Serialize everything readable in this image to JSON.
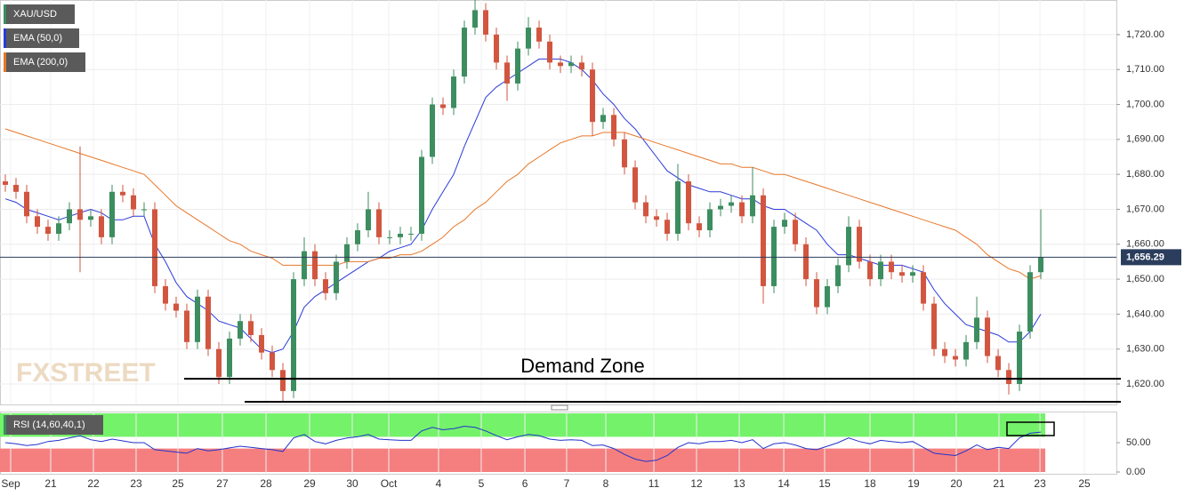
{
  "chart_data": {
    "type": "candlestick",
    "candles": {
      "name": "XAU/USD",
      "up_color": "#3c8d5f",
      "down_color": "#d2553f",
      "legend_color": "#3c8d5f",
      "open": [
        1678,
        1677,
        1675,
        1668,
        1665,
        1663,
        1666,
        1670,
        1667,
        1668,
        1662,
        1675,
        1674,
        1670,
        1670,
        1648,
        1643,
        1641,
        1632,
        1645,
        1630,
        1622,
        1633,
        1638,
        1634,
        1629,
        1624,
        1618,
        1650,
        1658,
        1650,
        1646,
        1655,
        1660,
        1664,
        1670,
        1662,
        1662,
        1663,
        1663,
        1685,
        1700,
        1699,
        1708,
        1722,
        1727,
        1720,
        1712,
        1706,
        1716,
        1722,
        1718,
        1712,
        1711,
        1712,
        1710,
        1695,
        1697,
        1690,
        1682,
        1672,
        1668,
        1667,
        1663,
        1678,
        1666,
        1664,
        1670,
        1671,
        1672,
        1668,
        1674,
        1648,
        1665,
        1667,
        1660,
        1650,
        1642,
        1648,
        1654,
        1665,
        1655,
        1650,
        1655,
        1652,
        1651,
        1652,
        1643,
        1630,
        1628,
        1627,
        1632,
        1639,
        1628,
        1624,
        1620,
        1635,
        1652
      ],
      "high": [
        1680,
        1679,
        1677,
        1670,
        1667,
        1668,
        1672,
        1688,
        1670,
        1670,
        1677,
        1677,
        1676,
        1672,
        1672,
        1650,
        1645,
        1643,
        1647,
        1647,
        1632,
        1635,
        1640,
        1640,
        1636,
        1631,
        1626,
        1652,
        1662,
        1660,
        1652,
        1657,
        1662,
        1666,
        1675,
        1672,
        1664,
        1665,
        1665,
        1687,
        1702,
        1702,
        1710,
        1724,
        1730,
        1729,
        1722,
        1714,
        1718,
        1725,
        1724,
        1720,
        1714,
        1714,
        1714,
        1712,
        1699,
        1699,
        1692,
        1684,
        1674,
        1670,
        1669,
        1683,
        1680,
        1668,
        1672,
        1673,
        1674,
        1674,
        1682,
        1676,
        1667,
        1669,
        1669,
        1662,
        1652,
        1650,
        1656,
        1668,
        1667,
        1657,
        1657,
        1657,
        1654,
        1654,
        1654,
        1645,
        1632,
        1630,
        1634,
        1645,
        1641,
        1630,
        1626,
        1637,
        1654,
        1670
      ],
      "low": [
        1675,
        1673,
        1666,
        1663,
        1661,
        1661,
        1664,
        1652,
        1665,
        1660,
        1660,
        1672,
        1668,
        1668,
        1646,
        1641,
        1639,
        1630,
        1630,
        1628,
        1620,
        1620,
        1631,
        1632,
        1627,
        1622,
        1615,
        1616,
        1648,
        1648,
        1644,
        1644,
        1653,
        1658,
        1662,
        1660,
        1660,
        1660,
        1661,
        1661,
        1683,
        1697,
        1697,
        1706,
        1720,
        1718,
        1710,
        1701,
        1704,
        1714,
        1716,
        1710,
        1709,
        1709,
        1708,
        1691,
        1693,
        1688,
        1680,
        1670,
        1666,
        1665,
        1661,
        1661,
        1664,
        1662,
        1662,
        1668,
        1669,
        1666,
        1666,
        1643,
        1646,
        1663,
        1658,
        1648,
        1640,
        1640,
        1646,
        1652,
        1653,
        1648,
        1648,
        1650,
        1649,
        1649,
        1641,
        1628,
        1626,
        1625,
        1625,
        1630,
        1626,
        1622,
        1617,
        1618,
        1633,
        1650
      ],
      "close": [
        1677,
        1675,
        1668,
        1665,
        1663,
        1666,
        1670,
        1667,
        1668,
        1662,
        1675,
        1674,
        1670,
        1670,
        1648,
        1643,
        1641,
        1632,
        1645,
        1630,
        1622,
        1633,
        1638,
        1634,
        1629,
        1624,
        1618,
        1650,
        1658,
        1650,
        1646,
        1655,
        1660,
        1664,
        1670,
        1662,
        1662,
        1663,
        1663,
        1685,
        1700,
        1699,
        1708,
        1722,
        1727,
        1720,
        1712,
        1706,
        1716,
        1722,
        1718,
        1712,
        1711,
        1712,
        1710,
        1695,
        1697,
        1690,
        1682,
        1672,
        1668,
        1667,
        1663,
        1678,
        1666,
        1664,
        1670,
        1671,
        1672,
        1668,
        1674,
        1648,
        1665,
        1667,
        1660,
        1650,
        1642,
        1648,
        1654,
        1665,
        1655,
        1650,
        1655,
        1652,
        1651,
        1652,
        1643,
        1630,
        1628,
        1627,
        1632,
        1639,
        1628,
        1624,
        1620,
        1635,
        1652,
        1656.29
      ]
    },
    "last_price_label": "1,656.29",
    "overlays": [
      {
        "name": "EMA (50,0)",
        "color": "#2a3ad8",
        "values": [
          1673,
          1672,
          1670,
          1669,
          1668,
          1667,
          1668,
          1669,
          1670,
          1669,
          1667,
          1667,
          1668,
          1668,
          1660,
          1655,
          1649,
          1645,
          1643,
          1641,
          1638,
          1637,
          1636,
          1633,
          1630,
          1629,
          1630,
          1635,
          1642,
          1645,
          1647,
          1649,
          1651,
          1653,
          1655,
          1656,
          1658,
          1659,
          1660,
          1664,
          1670,
          1675,
          1680,
          1688,
          1695,
          1702,
          1705,
          1707,
          1709,
          1711,
          1713,
          1713,
          1713,
          1712,
          1710,
          1707,
          1703,
          1700,
          1696,
          1693,
          1689,
          1685,
          1681,
          1679,
          1677,
          1676,
          1675,
          1675,
          1674,
          1673,
          1673,
          1671,
          1670,
          1670,
          1668,
          1666,
          1664,
          1660,
          1657,
          1657,
          1656,
          1655,
          1654,
          1654,
          1654,
          1653,
          1652,
          1647,
          1643,
          1640,
          1637,
          1636,
          1635,
          1634,
          1632,
          1632,
          1635,
          1640
        ]
      },
      {
        "name": "EMA (200,0)",
        "color": "#e8772a",
        "values": [
          1693,
          1692,
          1691,
          1690,
          1689,
          1688,
          1687,
          1686,
          1685,
          1684,
          1683,
          1682,
          1681,
          1680,
          1677,
          1674,
          1671,
          1669,
          1667,
          1665,
          1663,
          1661,
          1660,
          1658,
          1657,
          1656,
          1654,
          1654,
          1654,
          1654,
          1654,
          1654,
          1655,
          1655,
          1655,
          1656,
          1656,
          1657,
          1657,
          1658,
          1660,
          1662,
          1665,
          1667,
          1670,
          1672,
          1675,
          1678,
          1680,
          1683,
          1685,
          1687,
          1689,
          1690,
          1691,
          1691,
          1692,
          1692,
          1692,
          1691,
          1690,
          1689,
          1688,
          1687,
          1686,
          1685,
          1684,
          1683,
          1683,
          1682,
          1682,
          1681,
          1680,
          1680,
          1679,
          1678,
          1677,
          1676,
          1675,
          1674,
          1673,
          1672,
          1671,
          1670,
          1669,
          1668,
          1667,
          1666,
          1665,
          1664,
          1662,
          1660,
          1657,
          1655,
          1653,
          1652,
          1650,
          1651
        ]
      }
    ],
    "xlim": [
      -0.5,
      104.08
    ],
    "xticks": [
      {
        "value": 0.5,
        "label": "Sep"
      },
      {
        "value": 4.25,
        "label": "21"
      },
      {
        "value": 8.25,
        "label": "22"
      },
      {
        "value": 12.25,
        "label": "23"
      },
      {
        "value": 16.17,
        "label": "25"
      },
      {
        "value": 20.33,
        "label": "27"
      },
      {
        "value": 24.42,
        "label": "28"
      },
      {
        "value": 28.5,
        "label": "29"
      },
      {
        "value": 32.5,
        "label": "30"
      },
      {
        "value": 35.92,
        "label": "Oct"
      },
      {
        "value": 40.58,
        "label": "4"
      },
      {
        "value": 44.58,
        "label": "5"
      },
      {
        "value": 48.67,
        "label": "6"
      },
      {
        "value": 52.58,
        "label": "7"
      },
      {
        "value": 56.25,
        "label": "8"
      },
      {
        "value": 60.75,
        "label": "11"
      },
      {
        "value": 64.75,
        "label": "12"
      },
      {
        "value": 68.75,
        "label": "13"
      },
      {
        "value": 72.92,
        "label": "14"
      },
      {
        "value": 76.75,
        "label": "15"
      },
      {
        "value": 81,
        "label": "18"
      },
      {
        "value": 85.08,
        "label": "19"
      },
      {
        "value": 89.08,
        "label": "20"
      },
      {
        "value": 93.08,
        "label": "21"
      },
      {
        "value": 96.92,
        "label": "23"
      },
      {
        "value": 101.08,
        "label": "25"
      }
    ],
    "ylim": [
      1614.15,
      1729.9
    ],
    "yticks": [
      {
        "value": 1620,
        "label": "1,620.00"
      },
      {
        "value": 1630,
        "label": "1,630.00"
      },
      {
        "value": 1640,
        "label": "1,640.00"
      },
      {
        "value": 1650,
        "label": "1,650.00"
      },
      {
        "value": 1660,
        "label": "1,660.00"
      },
      {
        "value": 1670,
        "label": "1,670.00"
      },
      {
        "value": 1680,
        "label": "1,680.00"
      },
      {
        "value": 1690,
        "label": "1,690.00"
      },
      {
        "value": 1700,
        "label": "1,700.00"
      },
      {
        "value": 1710,
        "label": "1,710.00"
      },
      {
        "value": 1720,
        "label": "1,720.00"
      }
    ],
    "grid": true,
    "annotation": {
      "text": "Demand Zone",
      "levels": [
        1621.5,
        1614.9
      ]
    },
    "watermark": "FXSTREET",
    "indicator": {
      "name": "RSI (14,60,40,1)",
      "color": "#2233cc",
      "ylim": [
        0,
        100
      ],
      "yticks": [
        {
          "value": 50,
          "label": "50.00"
        },
        {
          "value": 0,
          "label": "0.00"
        }
      ],
      "bands": [
        40,
        60
      ],
      "band_colors": [
        "#f57f7f",
        "#74f26a"
      ],
      "values": [
        50,
        48,
        45,
        47,
        52,
        54,
        58,
        62,
        55,
        52,
        56,
        53,
        50,
        50,
        38,
        36,
        34,
        32,
        40,
        36,
        38,
        41,
        44,
        42,
        40,
        38,
        35,
        58,
        64,
        52,
        48,
        54,
        58,
        60,
        64,
        56,
        55,
        54,
        54,
        70,
        76,
        72,
        74,
        78,
        76,
        70,
        62,
        55,
        60,
        64,
        62,
        56,
        54,
        55,
        54,
        45,
        46,
        40,
        30,
        22,
        18,
        20,
        28,
        42,
        50,
        48,
        52,
        52,
        54,
        50,
        55,
        40,
        48,
        50,
        46,
        40,
        38,
        44,
        50,
        58,
        52,
        48,
        54,
        52,
        50,
        52,
        42,
        32,
        30,
        28,
        36,
        46,
        38,
        42,
        40,
        58,
        66,
        68
      ]
    }
  }
}
